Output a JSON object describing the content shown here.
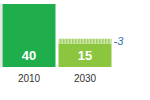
{
  "chart_data": {
    "type": "bar",
    "categories": [
      "2010",
      "2030"
    ],
    "values": [
      40,
      15
    ],
    "colors": [
      "#1fae4b",
      "#8cc63f"
    ],
    "data_labels": true,
    "ylim": [
      0,
      40
    ],
    "tick_labels": "x",
    "change": [
      null,
      -3
    ]
  }
}
